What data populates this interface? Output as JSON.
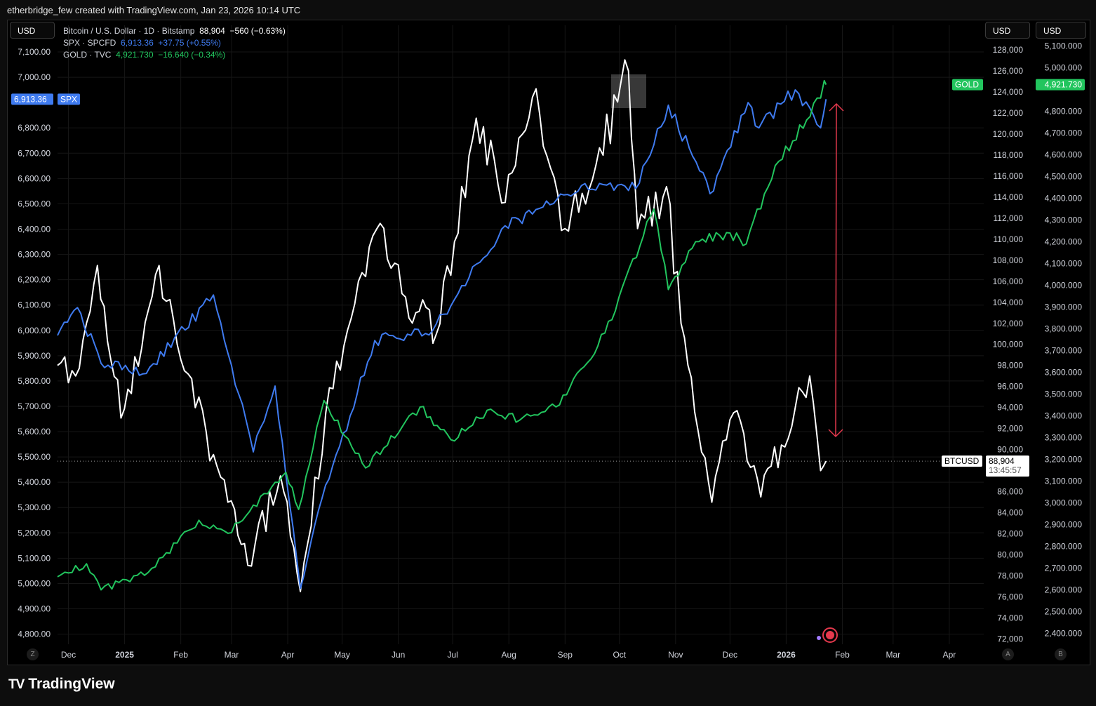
{
  "header": {
    "caption": "etherbridge_few created with TradingView.com, Jan 23, 2026 10:14 UTC"
  },
  "currency": {
    "left": "USD",
    "right1": "USD",
    "right2": "USD"
  },
  "legend": [
    {
      "name": "Bitcoin / U.S. Dollar · 1D · Bitstamp",
      "price": "88,904",
      "change": "−560 (−0.63%)",
      "color": "#ffffff"
    },
    {
      "name": "SPX · SPCFD",
      "price": "6,913.36",
      "change": "+37.75 (+0.55%)",
      "color": "#3f7bf0"
    },
    {
      "name": "GOLD · TVC",
      "price": "4,921.730",
      "change": "−16.640 (−0.34%)",
      "color": "#22c55e"
    }
  ],
  "badges": {
    "spx_value": "6,913.36",
    "spx_label": "SPX",
    "gold_label": "GOLD",
    "gold_value": "4,921.730",
    "btc_label": "BTCUSD",
    "btc_value": "88,904",
    "btc_countdown": "13:45:57"
  },
  "footer": {
    "brand": "TradingView",
    "scale_left": "Z",
    "scale_a": "A",
    "scale_b": "B"
  },
  "colors": {
    "btc": "#ffffff",
    "spx": "#3f7bf0",
    "gold": "#22c55e",
    "arrow": "#e5394d",
    "background": "#000000"
  },
  "chart_data": {
    "type": "line",
    "x_range": [
      "2024-11-25",
      "2026-04-20"
    ],
    "x_ticks": [
      "Dec",
      "2025",
      "Feb",
      "Mar",
      "Apr",
      "May",
      "Jun",
      "Jul",
      "Aug",
      "Sep",
      "Oct",
      "Nov",
      "Dec",
      "2026",
      "Feb",
      "Mar",
      "Apr"
    ],
    "axes": {
      "spx": {
        "side": "left",
        "range": [
          4760,
          7150
        ],
        "ticks": [
          "7,100.00",
          "7,000.00",
          "6,800.00",
          "6,700.00",
          "6,600.00",
          "6,500.00",
          "6,400.00",
          "6,300.00",
          "6,200.00",
          "6,100.00",
          "6,000.00",
          "5,900.00",
          "5,800.00",
          "5,700.00",
          "5,600.00",
          "5,500.00",
          "5,400.00",
          "5,300.00",
          "5,200.00",
          "5,100.00",
          "5,000.00",
          "4,900.00",
          "4,800.00"
        ]
      },
      "btc": {
        "side": "right",
        "range": [
          71500,
          129000
        ],
        "ticks": [
          "128,000",
          "126,000",
          "124,000",
          "122,000",
          "120,000",
          "118,000",
          "116,000",
          "114,000",
          "112,000",
          "110,000",
          "108,000",
          "106,000",
          "104,000",
          "102,000",
          "100,000",
          "98,000",
          "96,000",
          "94,000",
          "92,000",
          "90,000",
          "88,000",
          "86,000",
          "84,000",
          "82,000",
          "80,000",
          "78,000",
          "76,000",
          "74,000",
          "72,000"
        ]
      },
      "gold": {
        "side": "right",
        "range": [
          2350,
          5130
        ],
        "ticks": [
          "5,100.000",
          "5,000.000",
          "4,800.000",
          "4,700.000",
          "4,600.000",
          "4,500.000",
          "4,400.000",
          "4,300.000",
          "4,200.000",
          "4,100.000",
          "4,000.000",
          "3,900.000",
          "3,800.000",
          "3,700.000",
          "3,600.000",
          "3,500.000",
          "3,400.000",
          "3,300.000",
          "3,200.000",
          "3,100.000",
          "3,000.000",
          "2,900.000",
          "2,800.000",
          "2,700.000",
          "2,600.000",
          "2,500.000",
          "2,400.000"
        ]
      }
    },
    "series": [
      {
        "name": "Bitcoin / U.S. Dollar",
        "axis": "btc",
        "x": [
          "2024-11-25",
          "2024-12-05",
          "2024-12-17",
          "2024-12-30",
          "2025-01-20",
          "2025-02-03",
          "2025-02-27",
          "2025-03-10",
          "2025-03-28",
          "2025-04-08",
          "2025-04-22",
          "2025-05-22",
          "2025-06-05",
          "2025-06-22",
          "2025-07-14",
          "2025-07-30",
          "2025-08-14",
          "2025-09-01",
          "2025-09-18",
          "2025-10-06",
          "2025-10-11",
          "2025-10-27",
          "2025-11-04",
          "2025-11-21",
          "2025-12-03",
          "2025-12-18",
          "2026-01-06",
          "2026-01-14",
          "2026-01-20",
          "2026-01-23"
        ],
        "values": [
          98000,
          97000,
          107500,
          93000,
          107500,
          97500,
          85000,
          79000,
          87500,
          76500,
          93500,
          111500,
          104500,
          101000,
          121500,
          113500,
          123500,
          111000,
          117000,
          126000,
          111000,
          115000,
          102000,
          85000,
          93500,
          85500,
          94000,
          97000,
          88000,
          88904
        ]
      },
      {
        "name": "SPX",
        "axis": "spx",
        "x": [
          "2024-11-25",
          "2024-12-06",
          "2024-12-19",
          "2025-01-13",
          "2025-02-19",
          "2025-03-13",
          "2025-03-25",
          "2025-04-08",
          "2025-04-18",
          "2025-05-19",
          "2025-06-20",
          "2025-07-28",
          "2025-08-14",
          "2025-09-12",
          "2025-10-10",
          "2025-10-28",
          "2025-11-20",
          "2025-12-11",
          "2025-12-17",
          "2026-01-06",
          "2026-01-20",
          "2026-01-23"
        ],
        "values": [
          5980,
          6090,
          5870,
          5830,
          6140,
          5520,
          5780,
          4980,
          5290,
          5960,
          6000,
          6400,
          6460,
          6580,
          6560,
          6890,
          6540,
          6900,
          6800,
          6950,
          6800,
          6913.36
        ]
      },
      {
        "name": "GOLD",
        "axis": "gold",
        "x": [
          "2024-11-25",
          "2024-12-11",
          "2024-12-19",
          "2025-01-14",
          "2025-02-11",
          "2025-02-27",
          "2025-03-31",
          "2025-04-07",
          "2025-04-21",
          "2025-05-14",
          "2025-06-13",
          "2025-06-30",
          "2025-07-22",
          "2025-08-07",
          "2025-08-29",
          "2025-09-23",
          "2025-10-20",
          "2025-10-28",
          "2025-11-12",
          "2025-12-01",
          "2025-12-10",
          "2025-12-26",
          "2026-01-20",
          "2026-01-22",
          "2026-01-23"
        ],
        "values": [
          2660,
          2720,
          2600,
          2680,
          2920,
          2860,
          3140,
          2970,
          3470,
          3160,
          3440,
          3290,
          3430,
          3380,
          3450,
          3780,
          4350,
          3980,
          4200,
          4240,
          4190,
          4550,
          4860,
          4940,
          4921.73
        ]
      }
    ],
    "grid": true
  }
}
